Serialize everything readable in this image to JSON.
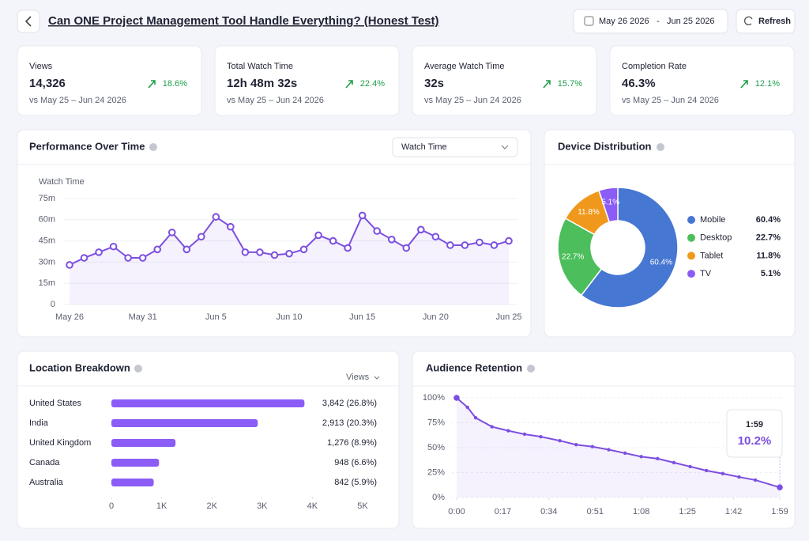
{
  "header": {
    "title": "Can ONE Project Management Tool Handle Everything? (Honest Test)",
    "date_start": "May 26 2026",
    "date_separator": "-",
    "date_end": "Jun 25 2026",
    "refresh": "Refresh"
  },
  "kpis": [
    {
      "label": "Views",
      "value": "14,326",
      "change": "18.6%",
      "comparison": "vs May 25 – Jun 24 2026"
    },
    {
      "label": "Total Watch Time",
      "value": "12h 48m 32s",
      "change": "22.4%",
      "comparison": "vs May 25 – Jun 24 2026"
    },
    {
      "label": "Average Watch Time",
      "value": "32s",
      "change": "15.7%",
      "comparison": "vs May 25 – Jun 24 2026"
    },
    {
      "label": "Completion Rate",
      "value": "46.3%",
      "change": "12.1%",
      "comparison": "vs May 25 – Jun 24 2026"
    }
  ],
  "chart_data": [
    {
      "type": "line",
      "title": "Performance Over Time",
      "selector": "Watch Time",
      "y_label": "Watch Time",
      "categories": [
        "May 26",
        null,
        null,
        null,
        null,
        "May 31",
        null,
        null,
        null,
        null,
        "Jun 5",
        null,
        null,
        null,
        null,
        "Jun 10",
        null,
        null,
        null,
        null,
        "Jun 15",
        null,
        null,
        null,
        null,
        "Jun 20",
        null,
        null,
        null,
        null,
        "Jun 25"
      ],
      "values": [
        28,
        33,
        37,
        41,
        33,
        33,
        39,
        51,
        39,
        48,
        62,
        55,
        37,
        37,
        35,
        36,
        39,
        49,
        45,
        40,
        63,
        52,
        46,
        40,
        53,
        48,
        42,
        42,
        44,
        42,
        45
      ],
      "color": "#7c4fe0",
      "ylim": [
        0,
        75
      ],
      "yticks": [
        0,
        {
          "value": 15,
          "label": "15m"
        },
        {
          "value": 30,
          "label": "30m"
        },
        {
          "value": 45,
          "label": "45m"
        },
        {
          "value": 60,
          "label": "60m"
        },
        {
          "value": 75,
          "label": "75m"
        }
      ],
      "grid": true,
      "fill": true,
      "markers": true
    },
    {
      "type": "donut",
      "title": "Device Distribution",
      "categories": [
        "Mobile",
        "Desktop",
        "Tablet",
        "TV"
      ],
      "values": [
        60.4,
        22.7,
        11.8,
        5.1
      ],
      "value_labels": [
        "60.4%",
        "22.7%",
        "11.8%",
        "5.1%"
      ],
      "colors": [
        "#4677d2",
        "#4cbf5c",
        "#f0981c",
        "#8b5cf6"
      ]
    },
    {
      "type": "bar",
      "orientation": "horizontal",
      "title": "Location Breakdown",
      "selector": "Views",
      "categories": [
        "United States",
        "India",
        "United Kingdom",
        "Canada",
        "Australia"
      ],
      "values": [
        3842,
        2913,
        1276,
        948,
        842
      ],
      "value_labels": [
        "3,842 (26.8%)",
        "2,913 (20.3%)",
        "1,276 (8.9%)",
        "948 (6.6%)",
        "842 (5.9%)"
      ],
      "color": "#8b5cf6",
      "xlim": [
        0,
        5000
      ],
      "xticks": [
        0,
        {
          "value": 1000,
          "label": "1K"
        },
        {
          "value": 2000,
          "label": "2K"
        },
        {
          "value": 3000,
          "label": "3K"
        },
        {
          "value": 4000,
          "label": "4K"
        },
        {
          "value": 5000,
          "label": "5K"
        }
      ]
    },
    {
      "type": "area",
      "title": "Audience Retention",
      "x": [
        0,
        4,
        7,
        13,
        19,
        25,
        31,
        38,
        44,
        50,
        56,
        62,
        68,
        74,
        80,
        86,
        92,
        98,
        104,
        110,
        119
      ],
      "values": [
        100,
        90.5,
        80,
        71,
        67,
        63.5,
        61,
        57,
        53,
        51,
        48,
        44.5,
        41,
        39,
        35,
        31,
        27,
        24,
        20.6,
        17.5,
        10.2
      ],
      "color": "#7c4fe0",
      "xlim": [
        0,
        119
      ],
      "xticks": [
        {
          "value": 0,
          "label": "0:00"
        },
        {
          "value": 17,
          "label": "0:17"
        },
        {
          "value": 34,
          "label": "0:34"
        },
        {
          "value": 51,
          "label": "0:51"
        },
        {
          "value": 68,
          "label": "1:08"
        },
        {
          "value": 85,
          "label": "1:25"
        },
        {
          "value": 102,
          "label": "1:42"
        },
        {
          "value": 119,
          "label": "1:59"
        }
      ],
      "ylim": [
        0,
        100
      ],
      "yticks": [
        {
          "value": 0,
          "label": "0%"
        },
        {
          "value": 25,
          "label": "25%"
        },
        {
          "value": 50,
          "label": "50%"
        },
        {
          "value": 75,
          "label": "75%"
        },
        {
          "value": 100,
          "label": "100%"
        }
      ],
      "grid": true,
      "tooltip": {
        "label": "1:59",
        "value": "10.2%"
      }
    }
  ]
}
